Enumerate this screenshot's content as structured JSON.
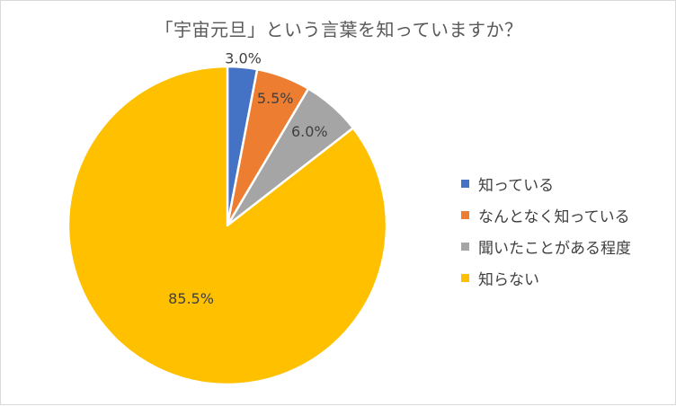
{
  "chart_data": {
    "type": "pie",
    "title": "「宇宙元旦」という言葉を知っていますか？",
    "slices": [
      {
        "label": "知っている",
        "value": 3.0,
        "display": "3.0%",
        "color": "#4472c4"
      },
      {
        "label": "なんとなく知っている",
        "value": 5.5,
        "display": "5.5%",
        "color": "#ed7d31"
      },
      {
        "label": "聞いたことがある程度",
        "value": 6.0,
        "display": "6.0%",
        "color": "#a5a5a5"
      },
      {
        "label": "知らない",
        "value": 85.5,
        "display": "85.5%",
        "color": "#ffc000"
      }
    ],
    "legend_position": "right",
    "start_angle": "12 o'clock",
    "direction": "clockwise"
  }
}
